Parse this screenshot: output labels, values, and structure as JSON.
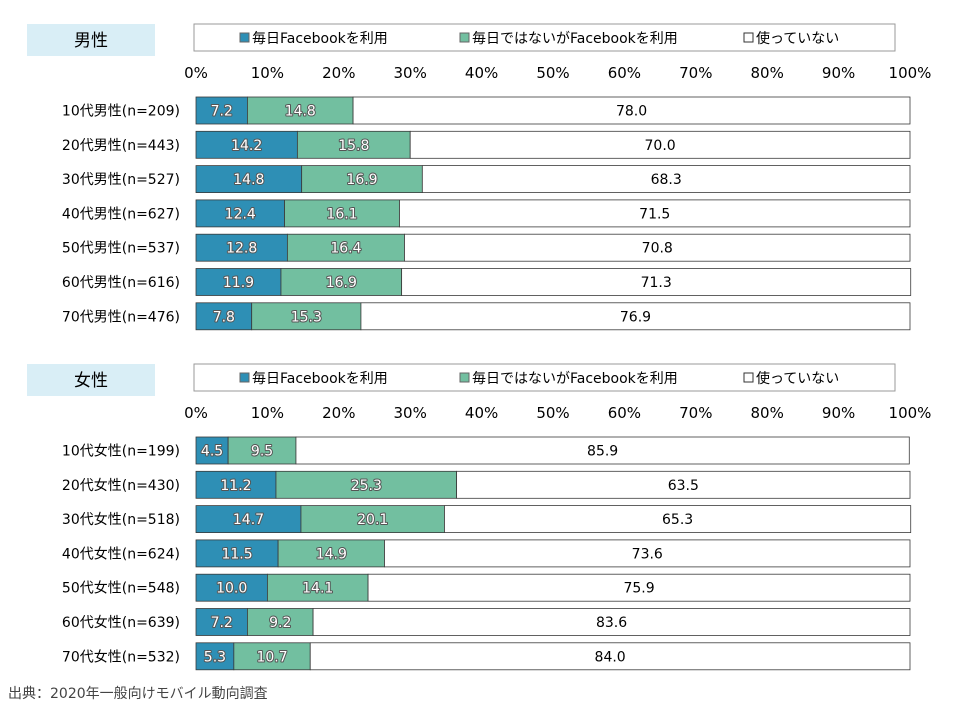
{
  "colors": {
    "daily": "#2e8fb5",
    "not_daily": "#72bfa0",
    "not_using": "#ffffff",
    "title_bg": "#d9eef6"
  },
  "legend": [
    "毎日Facebookを利用",
    "毎日ではないがFacebookを利用",
    "使っていない"
  ],
  "source": "出典：2020年一般向けモバイル動向調査",
  "chart_data": [
    {
      "type": "bar",
      "stacked": true,
      "orientation": "horizontal",
      "title": "男性",
      "xlim": [
        0,
        100
      ],
      "xticks": [
        "0%",
        "10%",
        "20%",
        "30%",
        "40%",
        "50%",
        "60%",
        "70%",
        "80%",
        "90%",
        "100%"
      ],
      "legend_position": "top",
      "categories": [
        "10代男性(n=209)",
        "20代男性(n=443)",
        "30代男性(n=527)",
        "40代男性(n=627)",
        "50代男性(n=537)",
        "60代男性(n=616)",
        "70代男性(n=476)"
      ],
      "series": [
        {
          "name": "毎日Facebookを利用",
          "values": [
            7.2,
            14.2,
            14.8,
            12.4,
            12.8,
            11.9,
            7.8
          ]
        },
        {
          "name": "毎日ではないがFacebookを利用",
          "values": [
            14.8,
            15.8,
            16.9,
            16.1,
            16.4,
            16.9,
            15.3
          ]
        },
        {
          "name": "使っていない",
          "values": [
            78.0,
            70.0,
            68.3,
            71.5,
            70.8,
            71.3,
            76.9
          ]
        }
      ]
    },
    {
      "type": "bar",
      "stacked": true,
      "orientation": "horizontal",
      "title": "女性",
      "xlim": [
        0,
        100
      ],
      "xticks": [
        "0%",
        "10%",
        "20%",
        "30%",
        "40%",
        "50%",
        "60%",
        "70%",
        "80%",
        "90%",
        "100%"
      ],
      "legend_position": "top",
      "categories": [
        "10代女性(n=199)",
        "20代女性(n=430)",
        "30代女性(n=518)",
        "40代女性(n=624)",
        "50代女性(n=548)",
        "60代女性(n=639)",
        "70代女性(n=532)"
      ],
      "series": [
        {
          "name": "毎日Facebookを利用",
          "values": [
            4.5,
            11.2,
            14.7,
            11.5,
            10.0,
            7.2,
            5.3
          ]
        },
        {
          "name": "毎日ではないがFacebookを利用",
          "values": [
            9.5,
            25.3,
            20.1,
            14.9,
            14.1,
            9.2,
            10.7
          ]
        },
        {
          "name": "使っていない",
          "values": [
            85.9,
            63.5,
            65.3,
            73.6,
            75.9,
            83.6,
            84.0
          ]
        }
      ]
    }
  ]
}
